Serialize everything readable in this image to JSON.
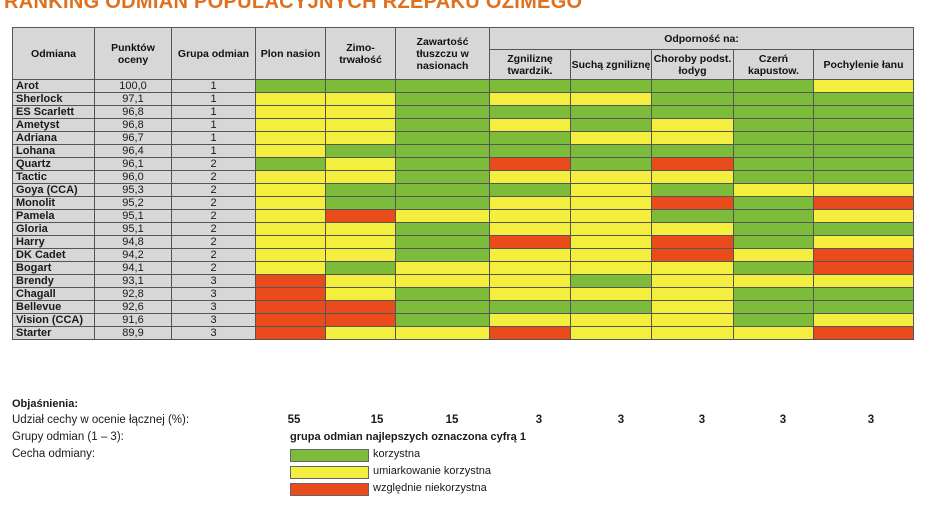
{
  "title": "RANKING ODMIAN POPULACYJNYCH RZEPAKU OZIMEGO",
  "colors": {
    "green": "#7dbb3a",
    "yellow": "#f4ee3f",
    "red": "#ea4b1d",
    "title": "#e0701e"
  },
  "headers": {
    "variety": "Odmiana",
    "points": "Punktów oceny",
    "group": "Grupa odmian",
    "yield": "Plon nasion",
    "winter": "Zimo- trwałość",
    "fat": "Zawartość tłuszczu w nasionach",
    "resistance": "Odporność na:",
    "sub": [
      "Zgniliznę twardzik.",
      "Suchą zgniliznę",
      "Choroby podst. łodyg",
      "Czerń kapustow.",
      "Pochylenie łanu"
    ]
  },
  "rows": [
    {
      "name": "Arot",
      "points": "100,0",
      "group": "1",
      "cells": [
        "g",
        "g",
        "g",
        "g",
        "g",
        "g",
        "g",
        "y"
      ]
    },
    {
      "name": "Sherlock",
      "points": "97,1",
      "group": "1",
      "cells": [
        "y",
        "y",
        "g",
        "y",
        "y",
        "g",
        "g",
        "g"
      ]
    },
    {
      "name": "ES Scarlett",
      "points": "96,8",
      "group": "1",
      "cells": [
        "y",
        "y",
        "g",
        "g",
        "g",
        "g",
        "g",
        "g"
      ]
    },
    {
      "name": "Ametyst",
      "points": "96,8",
      "group": "1",
      "cells": [
        "y",
        "y",
        "g",
        "y",
        "g",
        "y",
        "g",
        "g"
      ]
    },
    {
      "name": "Adriana",
      "points": "96,7",
      "group": "1",
      "cells": [
        "y",
        "y",
        "g",
        "g",
        "y",
        "y",
        "g",
        "g"
      ]
    },
    {
      "name": "Lohana",
      "points": "96,4",
      "group": "1",
      "cells": [
        "y",
        "g",
        "g",
        "g",
        "g",
        "g",
        "g",
        "g"
      ]
    },
    {
      "name": "Quartz",
      "points": "96,1",
      "group": "2",
      "cells": [
        "g",
        "y",
        "g",
        "r",
        "g",
        "r",
        "g",
        "g"
      ]
    },
    {
      "name": "Tactic",
      "points": "96,0",
      "group": "2",
      "cells": [
        "y",
        "y",
        "g",
        "y",
        "y",
        "y",
        "g",
        "g"
      ]
    },
    {
      "name": "Goya (CCA)",
      "points": "95,3",
      "group": "2",
      "cells": [
        "y",
        "g",
        "g",
        "g",
        "y",
        "g",
        "y",
        "y"
      ]
    },
    {
      "name": "Monolit",
      "points": "95,2",
      "group": "2",
      "cells": [
        "y",
        "g",
        "g",
        "y",
        "y",
        "r",
        "g",
        "r"
      ]
    },
    {
      "name": "Pamela",
      "points": "95,1",
      "group": "2",
      "cells": [
        "y",
        "r",
        "y",
        "y",
        "y",
        "g",
        "g",
        "y"
      ]
    },
    {
      "name": "Gloria",
      "points": "95,1",
      "group": "2",
      "cells": [
        "y",
        "y",
        "g",
        "y",
        "y",
        "y",
        "g",
        "g"
      ]
    },
    {
      "name": "Harry",
      "points": "94,8",
      "group": "2",
      "cells": [
        "y",
        "y",
        "g",
        "r",
        "y",
        "r",
        "g",
        "y"
      ]
    },
    {
      "name": "DK Cadet",
      "points": "94,2",
      "group": "2",
      "cells": [
        "y",
        "y",
        "g",
        "y",
        "y",
        "r",
        "y",
        "r"
      ]
    },
    {
      "name": "Bogart",
      "points": "94,1",
      "group": "2",
      "cells": [
        "y",
        "g",
        "y",
        "y",
        "y",
        "y",
        "g",
        "r"
      ]
    },
    {
      "name": "Brendy",
      "points": "93,1",
      "group": "3",
      "cells": [
        "r",
        "y",
        "y",
        "y",
        "g",
        "y",
        "y",
        "y"
      ]
    },
    {
      "name": "Chagall",
      "points": "92,8",
      "group": "3",
      "cells": [
        "r",
        "y",
        "g",
        "y",
        "y",
        "y",
        "g",
        "g"
      ]
    },
    {
      "name": "Bellevue",
      "points": "92,6",
      "group": "3",
      "cells": [
        "r",
        "r",
        "g",
        "g",
        "g",
        "y",
        "g",
        "g"
      ]
    },
    {
      "name": "Vision (CCA)",
      "points": "91,6",
      "group": "3",
      "cells": [
        "r",
        "r",
        "g",
        "y",
        "y",
        "y",
        "g",
        "y"
      ]
    },
    {
      "name": "Starter",
      "points": "89,9",
      "group": "3",
      "cells": [
        "r",
        "y",
        "y",
        "r",
        "y",
        "y",
        "y",
        "r"
      ]
    }
  ],
  "legend": {
    "title": "Objaśnienia:",
    "share_label": "Udział cechy w ocenie łącznej (%):",
    "share_values": [
      "55",
      "15",
      "15",
      "3",
      "3",
      "3",
      "3",
      "3"
    ],
    "groups_label": "Grupy odmian (1 – 3):",
    "groups_note": "grupa odmian najlepszych oznaczona cyfrą 1",
    "trait_label": "Cecha odmiany:",
    "items": [
      "korzystna",
      "umiarkowanie korzystna",
      "względnie niekorzystna"
    ]
  }
}
